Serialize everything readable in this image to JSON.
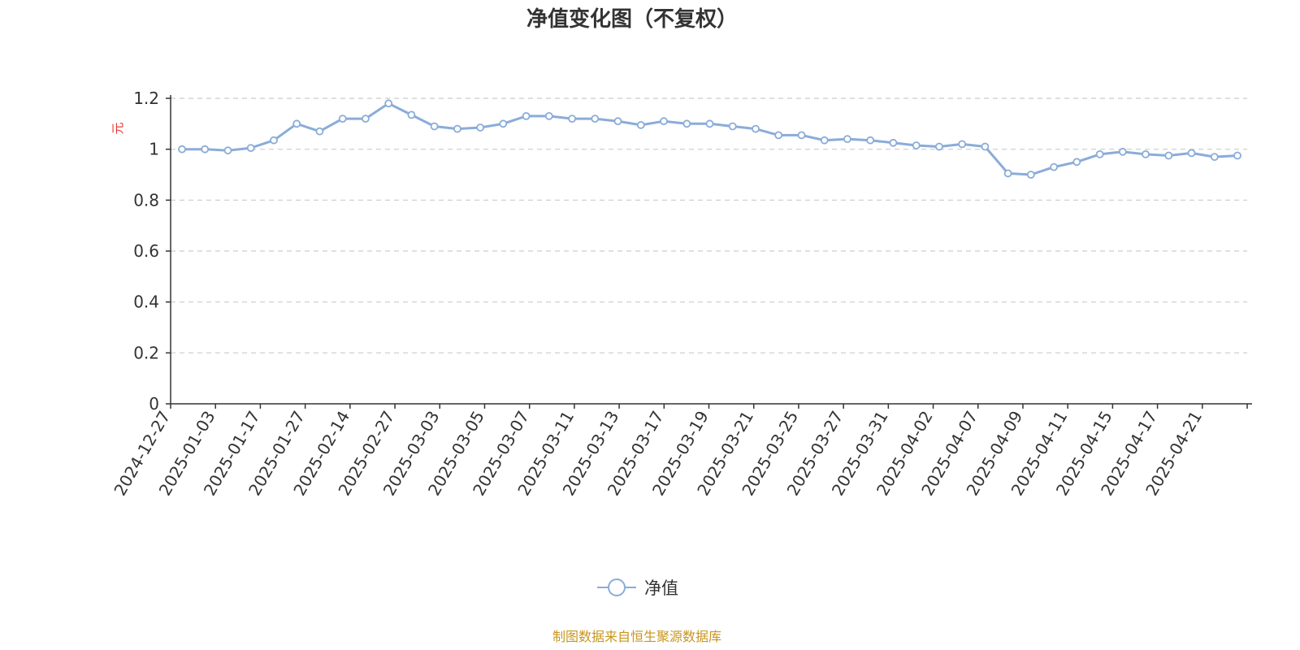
{
  "chart_data": {
    "type": "line",
    "title": "净值变化图（不复权）",
    "ylabel": "元",
    "ylim": [
      0,
      1.2
    ],
    "yticks": [
      0,
      0.2,
      0.4,
      0.6,
      0.8,
      1,
      1.2
    ],
    "grid": true,
    "legend_position": "bottom-center",
    "x_tick_labels": [
      "2024-12-27",
      "2025-01-03",
      "2025-01-17",
      "2025-01-27",
      "2025-02-14",
      "2025-02-27",
      "2025-03-03",
      "2025-03-05",
      "2025-03-07",
      "2025-03-11",
      "2025-03-13",
      "2025-03-17",
      "2025-03-19",
      "2025-03-21",
      "2025-03-25",
      "2025-03-27",
      "2025-03-31",
      "2025-04-02",
      "2025-04-07",
      "2025-04-09",
      "2025-04-11",
      "2025-04-15",
      "2025-04-17",
      "2025-04-21"
    ],
    "series": [
      {
        "name": "净值",
        "color": "#8aacd9",
        "values": [
          1.0,
          1.0,
          0.995,
          1.005,
          1.035,
          1.1,
          1.07,
          1.12,
          1.12,
          1.18,
          1.135,
          1.09,
          1.08,
          1.085,
          1.1,
          1.13,
          1.13,
          1.12,
          1.12,
          1.11,
          1.095,
          1.11,
          1.1,
          1.1,
          1.09,
          1.08,
          1.055,
          1.055,
          1.035,
          1.04,
          1.035,
          1.025,
          1.015,
          1.01,
          1.02,
          1.01,
          0.905,
          0.9,
          0.93,
          0.95,
          0.98,
          0.99,
          0.98,
          0.975,
          0.985,
          0.97,
          0.975
        ]
      }
    ]
  },
  "source_note": "制图数据来自恒生聚源数据库"
}
